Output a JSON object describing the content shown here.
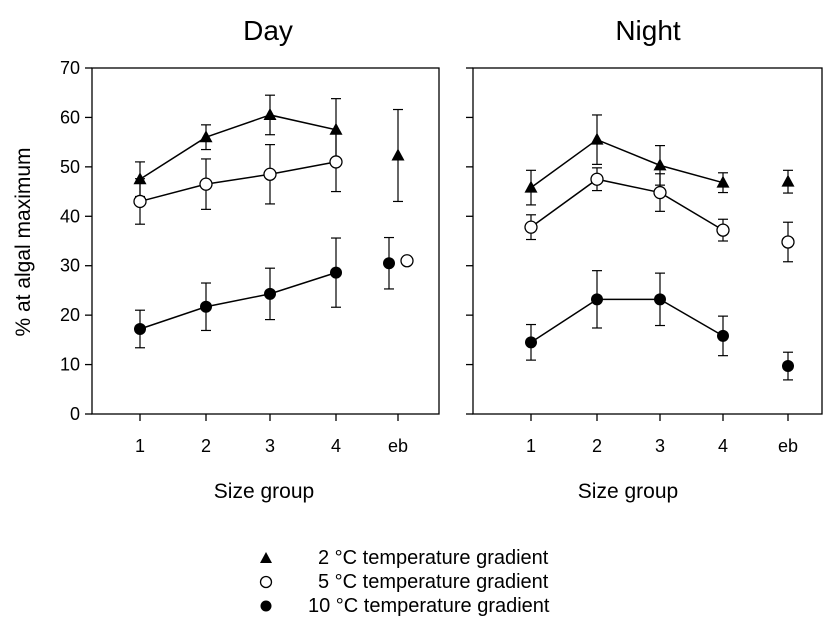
{
  "chart_data": [
    {
      "type": "scatter",
      "title": "Day",
      "xlabel": "Size group",
      "ylabel": "% at algal maximum",
      "ylim": [
        0,
        70
      ],
      "y_ticks": [
        "0",
        "10",
        "20",
        "30",
        "40",
        "50",
        "60",
        "70"
      ],
      "categories": [
        "1",
        "2",
        "3",
        "4",
        "eb"
      ],
      "series": [
        {
          "name": "2 °C temperature gradient",
          "marker": "triangle",
          "values": [
            47.5,
            56,
            60.5,
            57.5,
            52.3
          ],
          "errors": [
            3.5,
            2.5,
            4,
            6.3,
            9.3
          ]
        },
        {
          "name": "5 °C temperature gradient",
          "marker": "open-circle",
          "values": [
            43,
            46.5,
            48.5,
            51,
            31
          ],
          "errors": [
            4.6,
            5.1,
            6,
            6,
            null
          ]
        },
        {
          "name": "10 °C temperature gradient",
          "marker": "filled-circle",
          "values": [
            17.2,
            21.7,
            24.3,
            28.6,
            30.5
          ],
          "errors": [
            3.8,
            4.8,
            5.2,
            7,
            5.2
          ]
        }
      ]
    },
    {
      "type": "scatter",
      "title": "Night",
      "xlabel": "Size group",
      "ylim": [
        0,
        70
      ],
      "categories": [
        "1",
        "2",
        "3",
        "4",
        "eb"
      ],
      "series": [
        {
          "name": "2 °C temperature gradient",
          "marker": "triangle",
          "values": [
            45.8,
            55.5,
            50.3,
            46.8,
            47
          ],
          "errors": [
            3.5,
            5,
            4,
            2,
            2.3
          ]
        },
        {
          "name": "5 °C temperature gradient",
          "marker": "open-circle",
          "values": [
            37.8,
            47.5,
            44.8,
            37.2,
            34.8
          ],
          "errors": [
            2.5,
            2.3,
            3.8,
            2.2,
            4
          ]
        },
        {
          "name": "10 °C temperature gradient",
          "marker": "filled-circle",
          "values": [
            14.5,
            23.2,
            23.2,
            15.8,
            9.7
          ],
          "errors": [
            3.6,
            5.8,
            5.3,
            4,
            2.8
          ]
        }
      ]
    }
  ],
  "legend": [
    {
      "label": "2 °C temperature gradient",
      "marker": "triangle"
    },
    {
      "label": "5 °C temperature gradient",
      "marker": "open-circle"
    },
    {
      "label": "10 °C temperature gradient",
      "marker": "filled-circle"
    }
  ]
}
